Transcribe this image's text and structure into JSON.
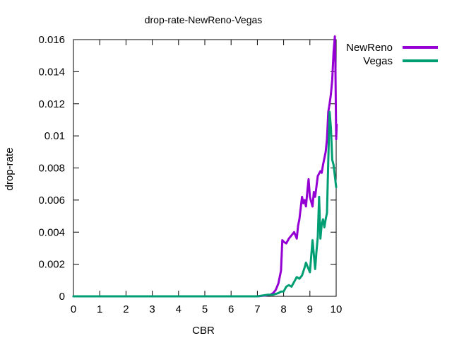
{
  "chart_data": {
    "type": "line",
    "title": "drop-rate-NewReno-Vegas",
    "xlabel": "CBR",
    "ylabel": "drop-rate",
    "xlim": [
      0,
      10
    ],
    "ylim": [
      0,
      0.016
    ],
    "x_ticks": [
      0,
      1,
      2,
      3,
      4,
      5,
      6,
      7,
      8,
      9,
      10
    ],
    "x_tick_labels": [
      "0",
      "1",
      "2",
      "3",
      "4",
      "5",
      "6",
      "7",
      "8",
      "9",
      "10"
    ],
    "y_ticks": [
      0,
      0.002,
      0.004,
      0.006,
      0.008,
      0.01,
      0.012,
      0.014,
      0.016
    ],
    "y_tick_labels": [
      "0",
      "0.002",
      "0.004",
      "0.006",
      "0.008",
      "0.01",
      "0.012",
      "0.014",
      "0.016"
    ],
    "grid": false,
    "legend_position": "top-right-outside",
    "series": [
      {
        "name": "NewReno",
        "color": "#9400d3",
        "points": [
          [
            0,
            0
          ],
          [
            7.0,
            0
          ],
          [
            7.3,
            5e-05
          ],
          [
            7.5,
            0.0001
          ],
          [
            7.6,
            0.0002
          ],
          [
            7.7,
            0.0004
          ],
          [
            7.8,
            0.0008
          ],
          [
            7.9,
            0.0016
          ],
          [
            7.95,
            0.0035
          ],
          [
            8.0,
            0.0034
          ],
          [
            8.1,
            0.0033
          ],
          [
            8.2,
            0.0036
          ],
          [
            8.3,
            0.0038
          ],
          [
            8.4,
            0.004
          ],
          [
            8.5,
            0.0036
          ],
          [
            8.55,
            0.0044
          ],
          [
            8.6,
            0.0048
          ],
          [
            8.7,
            0.0062
          ],
          [
            8.75,
            0.0058
          ],
          [
            8.8,
            0.006
          ],
          [
            8.85,
            0.0056
          ],
          [
            8.9,
            0.0065
          ],
          [
            8.95,
            0.0073
          ],
          [
            9.0,
            0.0062
          ],
          [
            9.1,
            0.0056
          ],
          [
            9.15,
            0.0065
          ],
          [
            9.2,
            0.0062
          ],
          [
            9.3,
            0.0075
          ],
          [
            9.4,
            0.0078
          ],
          [
            9.45,
            0.0077
          ],
          [
            9.5,
            0.0082
          ],
          [
            9.6,
            0.009
          ],
          [
            9.65,
            0.0098
          ],
          [
            9.7,
            0.0115
          ],
          [
            9.75,
            0.012
          ],
          [
            9.8,
            0.0126
          ],
          [
            9.85,
            0.0135
          ],
          [
            9.9,
            0.0152
          ],
          [
            9.95,
            0.0162
          ],
          [
            9.97,
            0.0145
          ],
          [
            10.0,
            0.0098
          ],
          [
            10.02,
            0.0107
          ]
        ]
      },
      {
        "name": "Vegas",
        "color": "#009e73",
        "points": [
          [
            0,
            0
          ],
          [
            7.0,
            0
          ],
          [
            7.2,
            5e-05
          ],
          [
            7.4,
            0.0001
          ],
          [
            7.6,
            0.0001
          ],
          [
            7.8,
            0.0002
          ],
          [
            7.9,
            0.0003
          ],
          [
            8.0,
            0.0003
          ],
          [
            8.1,
            0.0006
          ],
          [
            8.2,
            0.0007
          ],
          [
            8.3,
            0.0006
          ],
          [
            8.4,
            0.0009
          ],
          [
            8.5,
            0.0012
          ],
          [
            8.6,
            0.0011
          ],
          [
            8.7,
            0.0013
          ],
          [
            8.8,
            0.0018
          ],
          [
            8.85,
            0.0021
          ],
          [
            8.9,
            0.0019
          ],
          [
            8.95,
            0.0017
          ],
          [
            9.0,
            0.0015
          ],
          [
            9.1,
            0.0035
          ],
          [
            9.2,
            0.0017
          ],
          [
            9.25,
            0.0028
          ],
          [
            9.3,
            0.0037
          ],
          [
            9.35,
            0.0062
          ],
          [
            9.4,
            0.0036
          ],
          [
            9.45,
            0.0045
          ],
          [
            9.5,
            0.0048
          ],
          [
            9.55,
            0.0043
          ],
          [
            9.6,
            0.0048
          ],
          [
            9.65,
            0.0052
          ],
          [
            9.7,
            0.0085
          ],
          [
            9.75,
            0.0115
          ],
          [
            9.8,
            0.0105
          ],
          [
            9.85,
            0.0085
          ],
          [
            9.9,
            0.0082
          ],
          [
            9.95,
            0.0075
          ],
          [
            10.0,
            0.0068
          ]
        ]
      }
    ]
  }
}
